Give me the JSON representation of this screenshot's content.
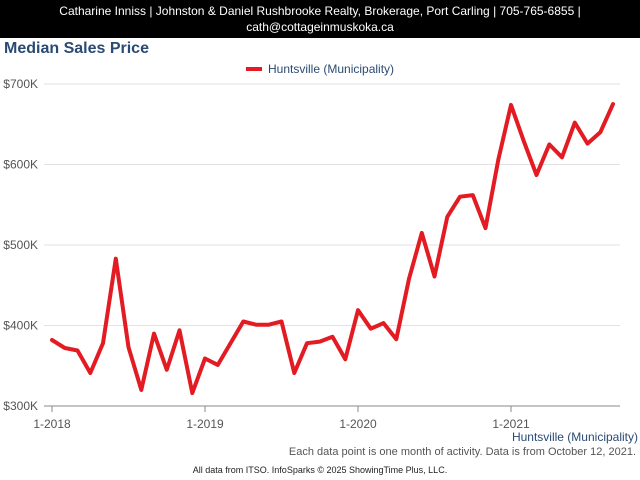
{
  "header": {
    "line1": "Catharine Inniss | Johnston & Daniel Rushbrooke Realty, Brokerage, Port Carling | 705-765-6855 |",
    "line2": "cath@cottageinmuskoka.ca"
  },
  "colors": {
    "line": "#e31b23",
    "title": "#2a4a72",
    "axis_text": "#555555"
  },
  "chart_data": {
    "type": "line",
    "title": "Median Sales Price",
    "x_tick_labels": [
      "1-2018",
      "1-2019",
      "1-2020",
      "1-2021"
    ],
    "y_tick_labels": [
      "$300K",
      "$400K",
      "$500K",
      "$600K",
      "$700K"
    ],
    "ylim": [
      300000,
      700000
    ],
    "grid": true,
    "legend_position": "top-center",
    "x_axis_series_label": "Huntsville (Municipality)",
    "series": [
      {
        "name": "Huntsville (Municipality)",
        "x": [
          "2018-01",
          "2018-02",
          "2018-03",
          "2018-04",
          "2018-05",
          "2018-06",
          "2018-07",
          "2018-08",
          "2018-09",
          "2018-10",
          "2018-11",
          "2018-12",
          "2019-01",
          "2019-02",
          "2019-03",
          "2019-04",
          "2019-05",
          "2019-06",
          "2019-07",
          "2019-08",
          "2019-09",
          "2019-10",
          "2019-11",
          "2019-12",
          "2020-01",
          "2020-02",
          "2020-03",
          "2020-04",
          "2020-05",
          "2020-06",
          "2020-07",
          "2020-08",
          "2020-09",
          "2020-10",
          "2020-11",
          "2020-12",
          "2021-01",
          "2021-02",
          "2021-03",
          "2021-04",
          "2021-05",
          "2021-06",
          "2021-07",
          "2021-08",
          "2021-09"
        ],
        "values": [
          382000,
          372000,
          369000,
          341000,
          378000,
          483000,
          373000,
          320000,
          390000,
          345000,
          394000,
          316000,
          359000,
          351000,
          378000,
          405000,
          401000,
          401000,
          405000,
          341000,
          378000,
          380000,
          386000,
          358000,
          419000,
          396000,
          403000,
          383000,
          458000,
          515000,
          461000,
          535000,
          560000,
          562000,
          521000,
          606000,
          674000,
          629000,
          587000,
          625000,
          609000,
          652000,
          626000,
          640000,
          675000
        ]
      }
    ]
  },
  "note": "Each data point is one month of activity. Data is from October 12, 2021.",
  "footer": "All data from ITSO. InfoSparks © 2025 ShowingTime Plus, LLC."
}
